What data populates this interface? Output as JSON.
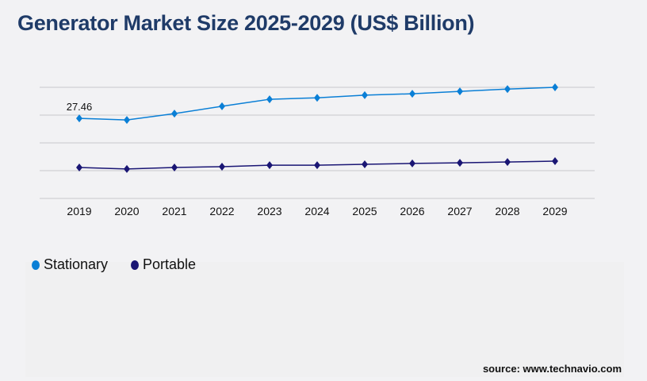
{
  "title": "Generator Market Size 2025-2029 (US$ Billion)",
  "source": "source: www.technavio.com",
  "chart_data": {
    "type": "line",
    "title": "Generator Market Size 2025-2029 (US$ Billion)",
    "categories": [
      "2019",
      "2020",
      "2021",
      "2022",
      "2023",
      "2024",
      "2025",
      "2026",
      "2027",
      "2028",
      "2029"
    ],
    "series": [
      {
        "name": "Stationary",
        "color": "#0a7fd6",
        "values": [
          27.46,
          26.9,
          29.1,
          31.6,
          34.0,
          34.5,
          35.4,
          35.9,
          36.7,
          37.5,
          38.1
        ]
      },
      {
        "name": "Portable",
        "color": "#1a1674",
        "values": [
          10.6,
          10.1,
          10.6,
          10.9,
          11.4,
          11.4,
          11.7,
          12.0,
          12.2,
          12.5,
          12.8
        ]
      }
    ],
    "data_labels": [
      {
        "series": "Stationary",
        "category": "2019",
        "text": "27.46"
      }
    ],
    "ylim": [
      0,
      38.1
    ],
    "grid": true,
    "legend": "bottom-left",
    "xlabel": "",
    "ylabel": ""
  }
}
